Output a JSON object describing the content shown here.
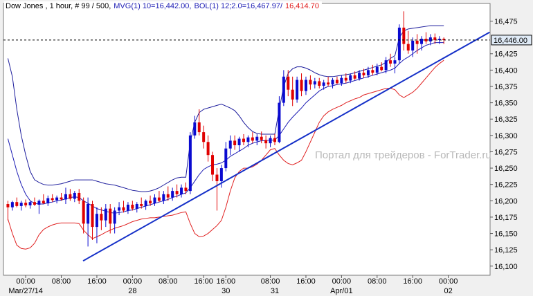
{
  "chart_data": {
    "type": "candlestick",
    "header": [
      {
        "text": "Dow Jones , 1 hour, # 99 / 500,",
        "color": "#000000"
      },
      {
        "text": "MVG(1) 10=16,442.00,",
        "color": "#1c1cb4"
      },
      {
        "text": "BOL(1) 12;2.0=16,467.97/",
        "color": "#1c1cb4"
      },
      {
        "text": "16,414.70",
        "color": "#e01c1c"
      }
    ],
    "watermark": "Портал для трейдеров - ForTrader.ru",
    "up_color": "#0a0ad0",
    "down_color": "#e00000",
    "open": [
      16195,
      16190,
      16198,
      16192,
      16197,
      16193,
      16198,
      16194,
      16200,
      16196,
      16204,
      16201,
      16205,
      16202,
      16210,
      16203,
      16212,
      16200,
      16165,
      16195,
      16160,
      16180,
      16170,
      16188,
      16165,
      16185,
      16190,
      16185,
      16194,
      16188,
      16195,
      16192,
      16200,
      16196,
      16205,
      16200,
      16210,
      16205,
      16215,
      16210,
      16220,
      16215,
      16300,
      16320,
      16305,
      16290,
      16270,
      16240,
      16230,
      16250,
      16280,
      16292,
      16285,
      16295,
      16290,
      16297,
      16292,
      16298,
      16293,
      16288,
      16296,
      16290,
      16350,
      16390,
      16370,
      16355,
      16385,
      16368,
      16385,
      16378,
      16383,
      16376,
      16381,
      16378,
      16385,
      16380,
      16388,
      16384,
      16392,
      16387,
      16396,
      16392,
      16400,
      16396,
      16405,
      16400,
      16415,
      16410,
      16415,
      16465,
      16440,
      16430,
      16445,
      16440,
      16448,
      16444,
      16450,
      16446,
      16448
    ],
    "high": [
      16200,
      16200,
      16205,
      16200,
      16202,
      16200,
      16205,
      16202,
      16210,
      16208,
      16210,
      16208,
      16212,
      16220,
      16218,
      16215,
      16218,
      16205,
      16205,
      16200,
      16190,
      16190,
      16195,
      16195,
      16190,
      16198,
      16200,
      16198,
      16200,
      16198,
      16205,
      16202,
      16208,
      16210,
      16215,
      16215,
      16222,
      16220,
      16225,
      16225,
      16228,
      16305,
      16330,
      16340,
      16315,
      16300,
      16275,
      16250,
      16255,
      16290,
      16300,
      16300,
      16298,
      16302,
      16300,
      16305,
      16302,
      16306,
      16300,
      16300,
      16302,
      16360,
      16400,
      16400,
      16390,
      16390,
      16395,
      16390,
      16392,
      16388,
      16388,
      16385,
      16390,
      16388,
      16390,
      16392,
      16395,
      16395,
      16398,
      16400,
      16402,
      16405,
      16408,
      16410,
      16412,
      16420,
      16425,
      16420,
      16470,
      16490,
      16460,
      16450,
      16455,
      16452,
      16458,
      16455,
      16456,
      16452,
      16450
    ],
    "low": [
      16170,
      16185,
      16190,
      16185,
      16190,
      16188,
      16192,
      16180,
      16195,
      16192,
      16198,
      16196,
      16200,
      16195,
      16200,
      16198,
      16195,
      16150,
      16130,
      16140,
      16135,
      16155,
      16160,
      16150,
      16150,
      16178,
      16182,
      16180,
      16185,
      16182,
      16188,
      16186,
      16192,
      16192,
      16198,
      16195,
      16200,
      16200,
      16205,
      16205,
      16210,
      16210,
      16295,
      16300,
      16280,
      16260,
      16230,
      16185,
      16220,
      16245,
      16270,
      16278,
      16275,
      16285,
      16282,
      16288,
      16285,
      16288,
      16280,
      16282,
      16285,
      16288,
      16345,
      16360,
      16345,
      16350,
      16360,
      16362,
      16370,
      16372,
      16372,
      16370,
      16375,
      16372,
      16378,
      16376,
      16380,
      16380,
      16385,
      16384,
      16388,
      16388,
      16392,
      16392,
      16398,
      16395,
      16405,
      16395,
      16410,
      16430,
      16425,
      16420,
      16425,
      16430,
      16440,
      16438,
      16440,
      16440,
      16440
    ],
    "close": [
      16190,
      16198,
      16192,
      16197,
      16193,
      16198,
      16194,
      16200,
      16196,
      16204,
      16201,
      16205,
      16202,
      16210,
      16203,
      16212,
      16200,
      16165,
      16195,
      16160,
      16180,
      16170,
      16188,
      16165,
      16185,
      16190,
      16185,
      16194,
      16188,
      16195,
      16192,
      16200,
      16196,
      16205,
      16200,
      16210,
      16205,
      16215,
      16210,
      16220,
      16215,
      16300,
      16320,
      16305,
      16290,
      16270,
      16240,
      16230,
      16250,
      16280,
      16292,
      16285,
      16295,
      16290,
      16297,
      16292,
      16298,
      16293,
      16288,
      16296,
      16290,
      16350,
      16390,
      16370,
      16355,
      16385,
      16368,
      16385,
      16378,
      16383,
      16376,
      16381,
      16378,
      16385,
      16380,
      16388,
      16384,
      16392,
      16387,
      16396,
      16392,
      16400,
      16396,
      16405,
      16400,
      16415,
      16410,
      16415,
      16465,
      16440,
      16430,
      16445,
      16440,
      16448,
      16444,
      16450,
      16446,
      16448,
      16446
    ],
    "lines": [
      {
        "color": "#1c1c9c",
        "width": 1,
        "values": [
          16418,
          16390,
          16340,
          16300,
          16270,
          16245,
          16232,
          16228,
          16225,
          16224,
          16224,
          16225,
          16226,
          16228,
          16230,
          16232,
          16232,
          16232,
          16232,
          16232,
          16230,
          16228,
          16226,
          16225,
          16224,
          16222,
          16220,
          16218,
          16216,
          16215,
          16214,
          16214,
          16215,
          16217,
          16220,
          16224,
          16228,
          16232,
          16235,
          16236,
          16236,
          16290,
          16320,
          16335,
          16340,
          16342,
          16344,
          16346,
          16348,
          16345,
          16342,
          16338,
          16330,
          16320,
          16312,
          16306,
          16303,
          16302,
          16302,
          16302,
          16302,
          16340,
          16375,
          16395,
          16402,
          16405,
          16405,
          16403,
          16400,
          16396,
          16393,
          16391,
          16390,
          16390,
          16391,
          16392,
          16393,
          16394,
          16396,
          16398,
          16400,
          16402,
          16404,
          16406,
          16408,
          16412,
          16418,
          16422,
          16450,
          16460,
          16463,
          16464,
          16465,
          16466,
          16467,
          16468,
          16468,
          16468,
          16468
        ]
      },
      {
        "color": "#e02020",
        "width": 1,
        "values": [
          16172,
          16150,
          16132,
          16127,
          16126,
          16128,
          16135,
          16148,
          16156,
          16160,
          16163,
          16165,
          16166,
          16166,
          16166,
          16166,
          16165,
          16155,
          16148,
          16142,
          16145,
          16148,
          16152,
          16155,
          16158,
          16160,
          16162,
          16165,
          16168,
          16170,
          16172,
          16173,
          16174,
          16174,
          16175,
          16176,
          16177,
          16178,
          16180,
          16182,
          16183,
          16165,
          16150,
          16145,
          16146,
          16150,
          16156,
          16162,
          16170,
          16190,
          16215,
          16235,
          16245,
          16250,
          16250,
          16252,
          16256,
          16262,
          16270,
          16278,
          16280,
          16270,
          16262,
          16257,
          16255,
          16258,
          16262,
          16275,
          16290,
          16305,
          16320,
          16330,
          16336,
          16340,
          16343,
          16346,
          16350,
          16353,
          16356,
          16358,
          16362,
          16364,
          16366,
          16368,
          16370,
          16372,
          16372,
          16370,
          16362,
          16358,
          16362,
          16366,
          16372,
          16380,
          16388,
          16396,
          16404,
          16410,
          16415
        ]
      },
      {
        "color": "#1c1cb4",
        "width": 1,
        "values": [
          16295,
          16270,
          16245,
          16225,
          16210,
          16200,
          16196,
          16195,
          16195,
          16197,
          16198,
          16200,
          16201,
          16203,
          16205,
          16206,
          16205,
          16200,
          16196,
          16192,
          16188,
          16186,
          16184,
          16182,
          16181,
          16182,
          16183,
          16185,
          16186,
          16188,
          16190,
          16192,
          16194,
          16196,
          16198,
          16200,
          16202,
          16205,
          16207,
          16210,
          16212,
          16220,
          16230,
          16240,
          16248,
          16252,
          16255,
          16256,
          16258,
          16262,
          16268,
          16272,
          16276,
          16280,
          16285,
          16288,
          16290,
          16292,
          16292,
          16293,
          16293,
          16300,
          16310,
          16320,
          16328,
          16335,
          16342,
          16350,
          16356,
          16362,
          16368,
          16372,
          16375,
          16376,
          16378,
          16379,
          16380,
          16382,
          16384,
          16386,
          16388,
          16390,
          16392,
          16394,
          16396,
          16398,
          16400,
          16403,
          16410,
          16416,
          16420,
          16425,
          16430,
          16434,
          16438,
          16440,
          16442,
          16442,
          16442
        ]
      }
    ],
    "trendline": {
      "color": "#1530c8",
      "x": [
        16.9,
        108.3
      ],
      "y": [
        16108,
        16458
      ]
    },
    "current_price": {
      "value": 16446,
      "label": "16,446.00"
    },
    "xlim": [
      -1,
      108.4
    ],
    "ylim": [
      16086,
      16502
    ],
    "yticks": [
      {
        "value": 16100,
        "label": "16,100"
      },
      {
        "value": 16125,
        "label": "16,125"
      },
      {
        "value": 16150,
        "label": "16,150"
      },
      {
        "value": 16175,
        "label": "16,175"
      },
      {
        "value": 16200,
        "label": "16,200"
      },
      {
        "value": 16225,
        "label": "16,225"
      },
      {
        "value": 16250,
        "label": "16,250"
      },
      {
        "value": 16275,
        "label": "16,275"
      },
      {
        "value": 16300,
        "label": "16,300"
      },
      {
        "value": 16325,
        "label": "16,325"
      },
      {
        "value": 16350,
        "label": "16,350"
      },
      {
        "value": 16375,
        "label": "16,375"
      },
      {
        "value": 16400,
        "label": "16,400"
      },
      {
        "value": 16425,
        "label": "16,425"
      },
      {
        "value": 16475,
        "label": "16,475"
      }
    ],
    "xticks": [
      {
        "value": 4,
        "label": "00:00"
      },
      {
        "value": 12,
        "label": "08:00"
      },
      {
        "value": 20,
        "label": "16:00"
      },
      {
        "value": 28,
        "label": "00:00"
      },
      {
        "value": 36,
        "label": "08:00"
      },
      {
        "value": 44,
        "label": "16:00"
      },
      {
        "value": 49,
        "label": "16:00"
      },
      {
        "value": 59,
        "label": "08:00"
      },
      {
        "value": 67,
        "label": "16:00"
      },
      {
        "value": 75,
        "label": "00:00"
      },
      {
        "value": 83,
        "label": "08:00"
      },
      {
        "value": 91,
        "label": "16:00"
      },
      {
        "value": 99,
        "label": "00:00"
      }
    ],
    "date_labels": [
      {
        "value": 4,
        "label": "Mar/27/14"
      },
      {
        "value": 28,
        "label": "28"
      },
      {
        "value": 49,
        "label": "30"
      },
      {
        "value": 60,
        "label": "31"
      },
      {
        "value": 75,
        "label": "Apr/01"
      },
      {
        "value": 99,
        "label": "02"
      }
    ],
    "grid": false
  }
}
